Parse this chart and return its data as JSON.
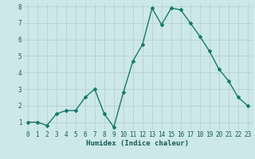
{
  "x": [
    0,
    1,
    2,
    3,
    4,
    5,
    6,
    7,
    8,
    9,
    10,
    11,
    12,
    13,
    14,
    15,
    16,
    17,
    18,
    19,
    20,
    21,
    22,
    23
  ],
  "y": [
    1.0,
    1.0,
    0.8,
    1.5,
    1.7,
    1.7,
    2.5,
    3.0,
    1.5,
    0.7,
    2.8,
    4.7,
    5.7,
    7.9,
    6.9,
    7.9,
    7.8,
    7.0,
    6.2,
    5.3,
    4.2,
    3.5,
    2.5,
    2.0
  ],
  "line_color": "#1a7a6e",
  "marker": "D",
  "marker_size": 2.0,
  "bg_color": "#cce8e8",
  "grid_color": "#b5cccc",
  "xlabel": "Humidex (Indice chaleur)",
  "ylim": [
    0.5,
    8.2
  ],
  "xlim": [
    -0.5,
    23.5
  ],
  "yticks": [
    1,
    2,
    3,
    4,
    5,
    6,
    7,
    8
  ],
  "xticks": [
    0,
    1,
    2,
    3,
    4,
    5,
    6,
    7,
    8,
    9,
    10,
    11,
    12,
    13,
    14,
    15,
    16,
    17,
    18,
    19,
    20,
    21,
    22,
    23
  ],
  "xlabel_fontsize": 6.5,
  "tick_fontsize": 5.5,
  "line_width": 1.0
}
